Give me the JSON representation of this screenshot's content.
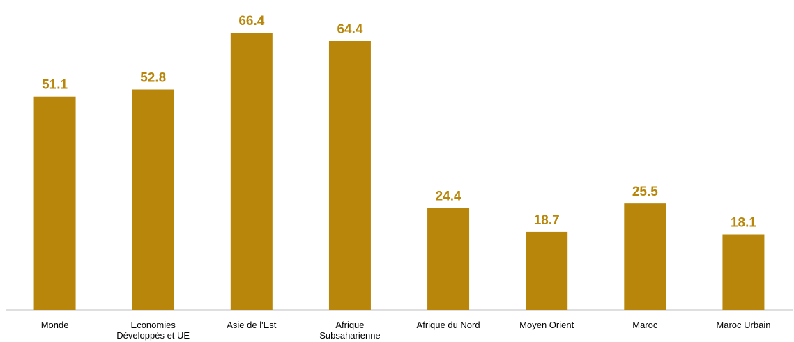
{
  "chart_data": {
    "type": "bar",
    "categories": [
      "Monde",
      "Economies Développés et UE",
      "Asie de l'Est",
      "Afrique Subsaharienne",
      "Afrique du Nord",
      "Moyen Orient",
      "Maroc",
      "Maroc Urbain"
    ],
    "values": [
      51.1,
      52.8,
      66.4,
      64.4,
      24.4,
      18.7,
      25.5,
      18.1
    ],
    "color": "#b8860b"
  }
}
